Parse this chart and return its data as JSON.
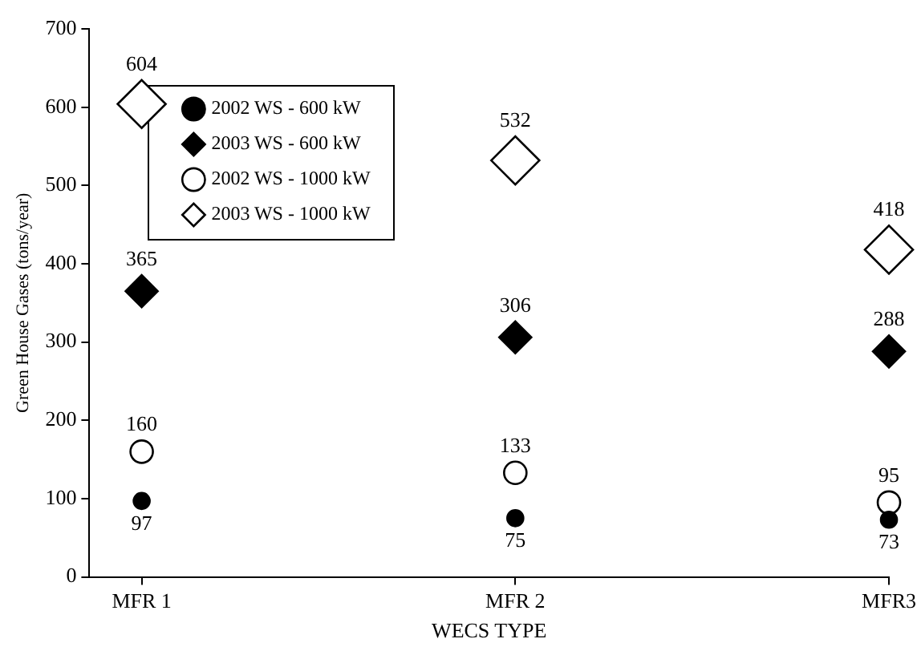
{
  "chart_data": {
    "type": "scatter",
    "xlabel": "WECS TYPE",
    "ylabel": "Green House Gases (tons/year)",
    "categories": [
      "MFR 1",
      "MFR 2",
      "MFR3"
    ],
    "series": [
      {
        "name": "2002 WS - 600 kW",
        "color": "#000000",
        "marker": "circle",
        "values": [
          97,
          75,
          73
        ]
      },
      {
        "name": "2003 WS - 600 kW",
        "color": "#000000",
        "marker": "diamond",
        "values": [
          365,
          306,
          288
        ]
      },
      {
        "name": "2002 WS - 1000 kW",
        "color": "#000000",
        "marker": "circle",
        "values": [
          160,
          133,
          95
        ]
      },
      {
        "name": "2003 WS - 1000 kW",
        "color": "#000000",
        "marker": "diamond",
        "values": [
          604,
          532,
          418
        ]
      }
    ],
    "ylim": [
      0,
      700
    ],
    "yticks": [
      0,
      100,
      200,
      300,
      400,
      500,
      600,
      700
    ],
    "grid": false,
    "legend": "top left",
    "data_labels": true
  }
}
